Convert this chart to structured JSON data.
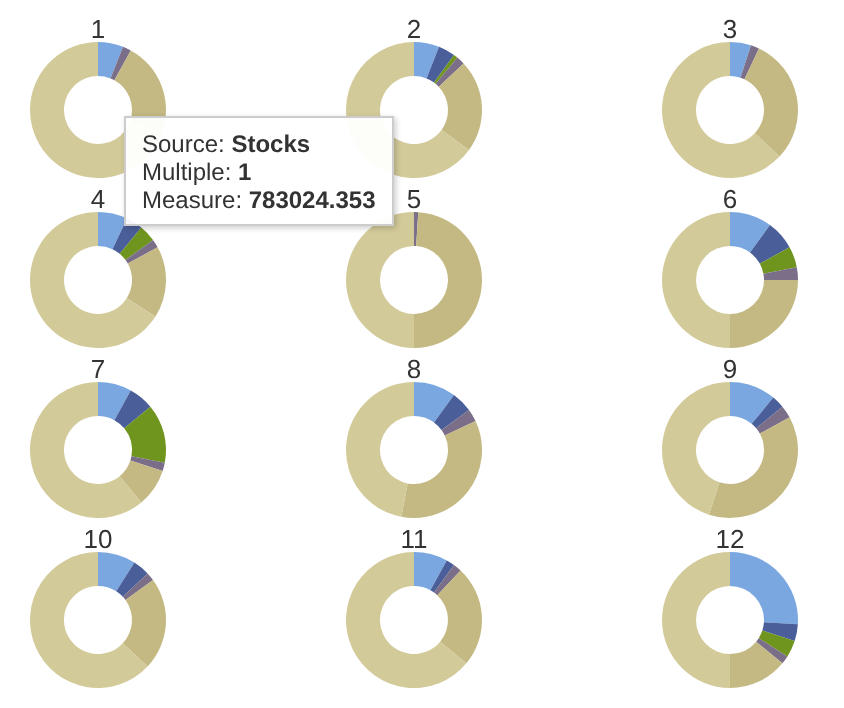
{
  "chart_data": [
    {
      "type": "donut",
      "title": "1",
      "categories": [
        null,
        null,
        null,
        null,
        null,
        null
      ],
      "values": [
        6,
        0,
        0,
        2,
        22,
        70
      ],
      "colors": [
        "#7ba7e0",
        "#4a5f9a",
        "#6f951e",
        "#7a6e88",
        "#c4b983",
        "#d3ca99"
      ],
      "annotations": [
        "Source: Stocks",
        "Multiple: 1",
        "Measure: 783024.353"
      ]
    },
    {
      "type": "donut",
      "title": "2",
      "categories": [
        null,
        null,
        null,
        null,
        null,
        null
      ],
      "values": [
        6,
        4,
        1,
        2,
        22,
        65
      ],
      "colors": [
        "#7ba7e0",
        "#4a5f9a",
        "#6f951e",
        "#7a6e88",
        "#c4b983",
        "#d3ca99"
      ]
    },
    {
      "type": "donut",
      "title": "3",
      "categories": [
        null,
        null,
        null,
        null,
        null,
        null
      ],
      "values": [
        5,
        0,
        0,
        2,
        30,
        63
      ],
      "colors": [
        "#7ba7e0",
        "#4a5f9a",
        "#6f951e",
        "#7a6e88",
        "#c4b983",
        "#d3ca99"
      ]
    },
    {
      "type": "donut",
      "title": "4",
      "categories": [
        null,
        null,
        null,
        null,
        null,
        null
      ],
      "values": [
        7,
        4,
        4,
        2,
        17,
        66
      ],
      "colors": [
        "#7ba7e0",
        "#4a5f9a",
        "#6f951e",
        "#7a6e88",
        "#c4b983",
        "#d3ca99"
      ]
    },
    {
      "type": "donut",
      "title": "5",
      "categories": [
        null,
        null,
        null,
        null,
        null,
        null
      ],
      "values": [
        0,
        0,
        0,
        1,
        49,
        50
      ],
      "colors": [
        "#7ba7e0",
        "#4a5f9a",
        "#6f951e",
        "#7a6e88",
        "#c4b983",
        "#d3ca99"
      ]
    },
    {
      "type": "donut",
      "title": "6",
      "categories": [
        null,
        null,
        null,
        null,
        null,
        null
      ],
      "values": [
        10,
        7,
        5,
        3,
        25,
        50
      ],
      "colors": [
        "#7ba7e0",
        "#4a5f9a",
        "#6f951e",
        "#7a6e88",
        "#c4b983",
        "#d3ca99"
      ]
    },
    {
      "type": "donut",
      "title": "7",
      "categories": [
        null,
        null,
        null,
        null,
        null,
        null
      ],
      "values": [
        8,
        6,
        14,
        2,
        9,
        61
      ],
      "colors": [
        "#7ba7e0",
        "#4a5f9a",
        "#6f951e",
        "#7a6e88",
        "#c4b983",
        "#d3ca99"
      ]
    },
    {
      "type": "donut",
      "title": "8",
      "categories": [
        null,
        null,
        null,
        null,
        null,
        null
      ],
      "values": [
        10,
        5,
        0,
        3,
        35,
        47
      ],
      "colors": [
        "#7ba7e0",
        "#4a5f9a",
        "#6f951e",
        "#7a6e88",
        "#c4b983",
        "#d3ca99"
      ]
    },
    {
      "type": "donut",
      "title": "9",
      "categories": [
        null,
        null,
        null,
        null,
        null,
        null
      ],
      "values": [
        11,
        3,
        0,
        3,
        38,
        45
      ],
      "colors": [
        "#7ba7e0",
        "#4a5f9a",
        "#6f951e",
        "#7a6e88",
        "#c4b983",
        "#d3ca99"
      ]
    },
    {
      "type": "donut",
      "title": "10",
      "categories": [
        null,
        null,
        null,
        null,
        null,
        null
      ],
      "values": [
        9,
        4,
        0,
        2,
        22,
        63
      ],
      "colors": [
        "#7ba7e0",
        "#4a5f9a",
        "#6f951e",
        "#7a6e88",
        "#c4b983",
        "#d3ca99"
      ]
    },
    {
      "type": "donut",
      "title": "11",
      "categories": [
        null,
        null,
        null,
        null,
        null,
        null
      ],
      "values": [
        8,
        2,
        0,
        2,
        24,
        64
      ],
      "colors": [
        "#7ba7e0",
        "#4a5f9a",
        "#6f951e",
        "#7a6e88",
        "#c4b983",
        "#d3ca99"
      ]
    },
    {
      "type": "donut",
      "title": "12",
      "categories": [
        null,
        null,
        null,
        null,
        null,
        null
      ],
      "values": [
        26,
        4,
        4,
        2,
        14,
        50
      ],
      "colors": [
        "#7ba7e0",
        "#4a5f9a",
        "#6f951e",
        "#7a6e88",
        "#c4b983",
        "#d3ca99"
      ]
    }
  ]
}
